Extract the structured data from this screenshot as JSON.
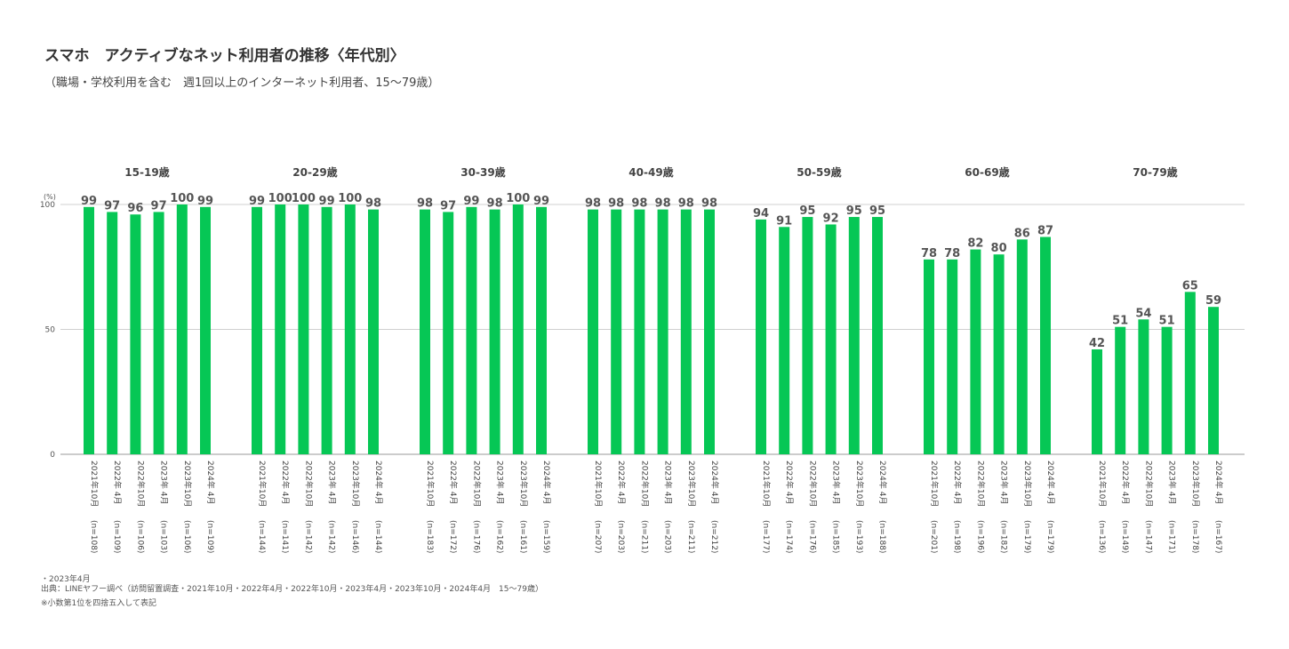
{
  "title": "スマホ　アクティブなネット利用者の推移〈年代別〉",
  "subtitle": "（職場・学校利用を含む　週1回以上のインターネット利用者、15～79歳）",
  "notes": {
    "small": "・2023年4月",
    "source": "出典：LINEヤフー調べ（訪問留置調査・2021年10月・2022年4月・2022年10月・2023年4月・2023年10月・2024年4月　15～79歳）",
    "rounding": "※小数第1位を四捨五入して表記"
  },
  "chart_data": {
    "type": "bar",
    "unit_label": "(%)",
    "ylim": [
      0,
      100
    ],
    "yticks": [
      0,
      50,
      100
    ],
    "grid": true,
    "bar_color": "#06C755",
    "periods": [
      "2021年10月",
      "2022年 4月",
      "2022年10月",
      "2023年 4月",
      "2023年10月",
      "2024年 4月"
    ],
    "groups": [
      {
        "label": "15-19歳",
        "values": [
          99,
          97,
          96,
          97,
          100,
          99
        ],
        "n": [
          "(n=108)",
          "(n=109)",
          "(n=106)",
          "(n=103)",
          "(n=106)",
          "(n=109)"
        ]
      },
      {
        "label": "20-29歳",
        "values": [
          99,
          100,
          100,
          99,
          100,
          98
        ],
        "n": [
          "(n=144)",
          "(n=141)",
          "(n=142)",
          "(n=142)",
          "(n=146)",
          "(n=144)"
        ]
      },
      {
        "label": "30-39歳",
        "values": [
          98,
          97,
          99,
          98,
          100,
          99
        ],
        "n": [
          "(n=183)",
          "(n=172)",
          "(n=176)",
          "(n=162)",
          "(n=161)",
          "(n=159)"
        ]
      },
      {
        "label": "40-49歳",
        "values": [
          98,
          98,
          98,
          98,
          98,
          98
        ],
        "n": [
          "(n=207)",
          "(n=203)",
          "(n=211)",
          "(n=203)",
          "(n=211)",
          "(n=212)"
        ]
      },
      {
        "label": "50-59歳",
        "values": [
          94,
          91,
          95,
          92,
          95,
          95
        ],
        "n": [
          "(n=177)",
          "(n=174)",
          "(n=176)",
          "(n=185)",
          "(n=193)",
          "(n=188)"
        ]
      },
      {
        "label": "60-69歳",
        "values": [
          78,
          78,
          82,
          80,
          86,
          87
        ],
        "n": [
          "(n=201)",
          "(n=198)",
          "(n=196)",
          "(n=182)",
          "(n=179)",
          "(n=179)"
        ]
      },
      {
        "label": "70-79歳",
        "values": [
          42,
          51,
          54,
          51,
          65,
          59
        ],
        "n": [
          "(n=136)",
          "(n=149)",
          "(n=147)",
          "(n=171)",
          "(n=178)",
          "(n=167)"
        ]
      }
    ]
  }
}
